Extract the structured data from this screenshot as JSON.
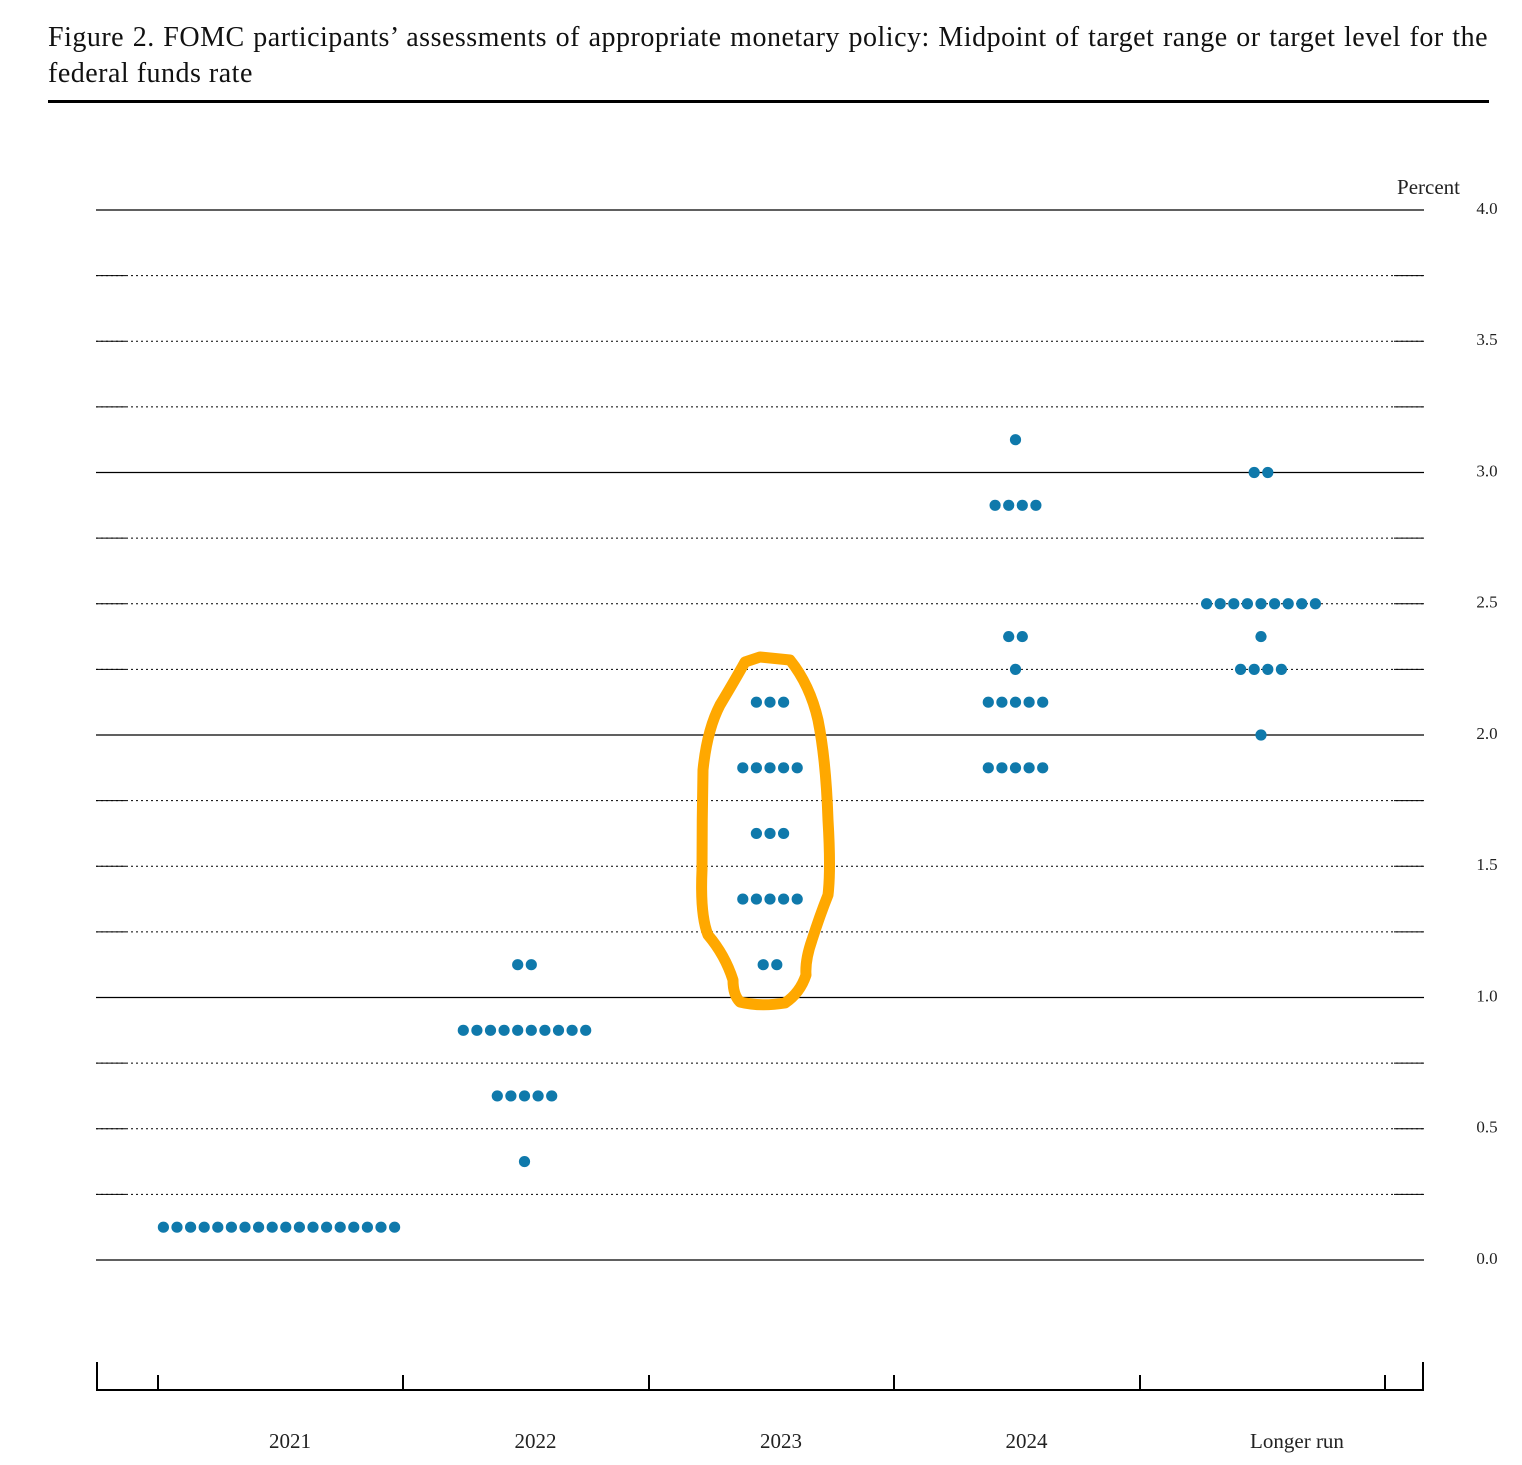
{
  "chart_data": {
    "type": "dot",
    "title": "Figure 2.  FOMC participants’ assessments of appropriate monetary policy:  Midpoint of target range or target level for the federal funds rate",
    "y_label": "Percent",
    "categories": [
      "2021",
      "2022",
      "2023",
      "2024",
      "Longer run"
    ],
    "dots": [
      [
        0.125,
        0.125,
        0.125,
        0.125,
        0.125,
        0.125,
        0.125,
        0.125,
        0.125,
        0.125,
        0.125,
        0.125,
        0.125,
        0.125,
        0.125,
        0.125,
        0.125,
        0.125
      ],
      [
        1.125,
        1.125,
        0.875,
        0.875,
        0.875,
        0.875,
        0.875,
        0.875,
        0.875,
        0.875,
        0.875,
        0.875,
        0.625,
        0.625,
        0.625,
        0.625,
        0.625,
        0.375
      ],
      [
        2.125,
        2.125,
        2.125,
        1.875,
        1.875,
        1.875,
        1.875,
        1.875,
        1.625,
        1.625,
        1.625,
        1.375,
        1.375,
        1.375,
        1.375,
        1.375,
        1.125,
        1.125
      ],
      [
        3.125,
        2.875,
        2.875,
        2.875,
        2.875,
        2.375,
        2.375,
        2.25,
        2.125,
        2.125,
        2.125,
        2.125,
        2.125,
        1.875,
        1.875,
        1.875,
        1.875,
        1.875
      ],
      [
        3.0,
        3.0,
        2.5,
        2.5,
        2.5,
        2.5,
        2.5,
        2.5,
        2.5,
        2.5,
        2.5,
        2.375,
        2.25,
        2.25,
        2.25,
        2.25,
        2.0
      ]
    ],
    "color": "#0f79ab",
    "ylim": [
      0,
      4
    ],
    "yticks": [
      {
        "value": 0,
        "label": "0.0"
      },
      {
        "value": 0.5,
        "label": "0.5"
      },
      {
        "value": 1,
        "label": "1.0"
      },
      {
        "value": 1.5,
        "label": "1.5"
      },
      {
        "value": 2,
        "label": "2.0"
      },
      {
        "value": 2.5,
        "label": "2.5"
      },
      {
        "value": 3,
        "label": "3.0"
      },
      {
        "value": 3.5,
        "label": "3.5"
      },
      {
        "value": 4,
        "label": "4.0"
      }
    ],
    "minor_yticks": [
      0.25,
      0.75,
      1.25,
      1.75,
      2.25,
      2.75,
      3.25,
      3.75
    ],
    "grid": true
  }
}
